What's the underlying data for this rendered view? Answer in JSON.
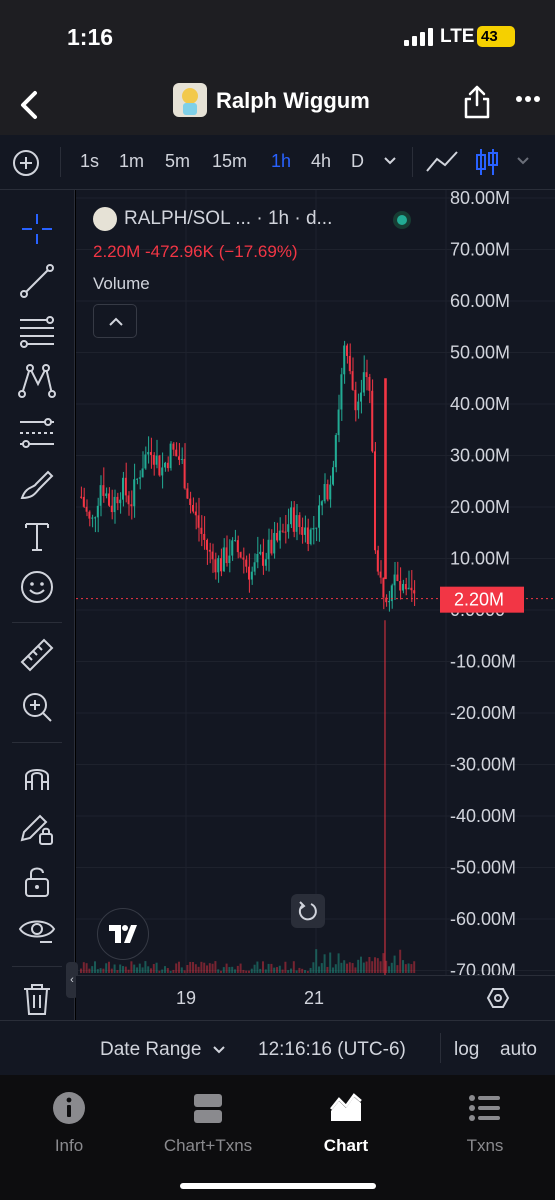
{
  "status": {
    "time": "1:16",
    "network": "LTE",
    "battery": "43"
  },
  "header": {
    "title": "Ralph Wiggum"
  },
  "toolbar": {
    "intervals": [
      "1s",
      "1m",
      "5m",
      "15m",
      "1h",
      "4h",
      "D"
    ],
    "active_interval": "1h"
  },
  "legend": {
    "symbol": "RALPH/SOL ... · 1h · d...",
    "values": "2.20M  -472.96K (−17.69%)",
    "volume_label": "Volume"
  },
  "price_axis": {
    "labels": [
      "80.00M",
      "70.00M",
      "60.00M",
      "50.00M",
      "40.00M",
      "30.00M",
      "20.00M",
      "10.00M",
      "0.0000",
      "-10.00M",
      "-20.00M",
      "-30.00M",
      "-40.00M",
      "-50.00M",
      "-60.00M",
      "-70.00M"
    ],
    "last_price": "2.20M"
  },
  "date_axis": {
    "labels": [
      "19",
      "21"
    ]
  },
  "bottom": {
    "date_range": "Date Range",
    "clock": "12:16:16 (UTC-6)",
    "log": "log",
    "auto": "auto"
  },
  "tabs": [
    {
      "label": "Info"
    },
    {
      "label": "Chart+Txns"
    },
    {
      "label": "Chart"
    },
    {
      "label": "Txns"
    }
  ],
  "active_tab": "Chart",
  "colors": {
    "up": "#22ab94",
    "down": "#f23645",
    "accent": "#2962ff",
    "background": "#131722"
  },
  "chart_data": {
    "type": "candlestick",
    "pair": "RALPH/SOL",
    "interval": "1h",
    "last_value": "2.20M",
    "change": "-472.96K",
    "change_pct": "−17.69%",
    "ylim": [
      -70000000,
      80000000
    ],
    "x_ticks": [
      "19",
      "21"
    ],
    "close_path": [
      [
        0,
        22000000
      ],
      [
        0.03,
        16000000
      ],
      [
        0.06,
        25000000
      ],
      [
        0.09,
        20000000
      ],
      [
        0.12,
        24000000
      ],
      [
        0.15,
        21000000
      ],
      [
        0.18,
        28000000
      ],
      [
        0.21,
        32000000
      ],
      [
        0.24,
        27000000
      ],
      [
        0.27,
        31000000
      ],
      [
        0.3,
        29000000
      ],
      [
        0.33,
        20000000
      ],
      [
        0.36,
        15000000
      ],
      [
        0.39,
        10000000
      ],
      [
        0.42,
        9000000
      ],
      [
        0.45,
        12000000
      ],
      [
        0.48,
        11000000
      ],
      [
        0.51,
        7000000
      ],
      [
        0.54,
        10000000
      ],
      [
        0.57,
        12000000
      ],
      [
        0.6,
        14000000
      ],
      [
        0.63,
        18000000
      ],
      [
        0.66,
        16000000
      ],
      [
        0.69,
        15000000
      ],
      [
        0.72,
        20000000
      ],
      [
        0.75,
        26000000
      ],
      [
        0.77,
        38000000
      ],
      [
        0.79,
        50000000
      ],
      [
        0.81,
        44000000
      ],
      [
        0.83,
        40000000
      ],
      [
        0.85,
        45000000
      ],
      [
        0.87,
        40000000
      ],
      [
        0.885,
        8000000
      ],
      [
        0.9,
        5000000
      ],
      [
        0.92,
        3000000
      ],
      [
        0.94,
        6000000
      ],
      [
        0.96,
        3500000
      ],
      [
        0.98,
        2200000
      ]
    ],
    "volume_spike": [
      0.89,
      0.65
    ]
  }
}
